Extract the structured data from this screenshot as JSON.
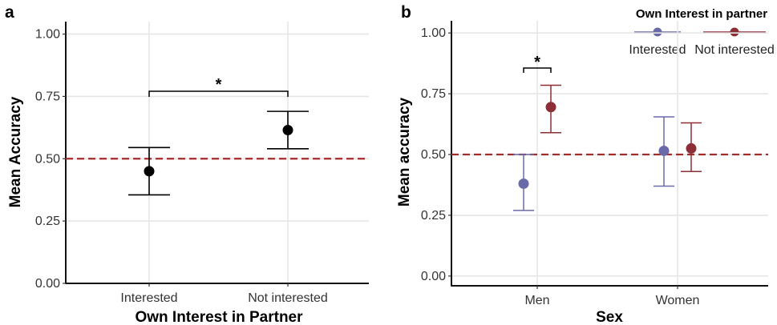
{
  "chart_data": [
    {
      "type": "scatter",
      "panel_label": "a",
      "xlabel": "Own Interest in Partner",
      "ylabel": "Mean Accuracy",
      "categories": [
        "Interested",
        "Not interested"
      ],
      "y_ticks": [
        "0.00",
        "0.25",
        "0.50",
        "0.75",
        "1.00"
      ],
      "ylim": [
        0,
        1.05
      ],
      "grid": true,
      "reference_line": {
        "y": 0.5,
        "style": "dashed",
        "color": "#a52a2a"
      },
      "series": [
        {
          "color": "#000000",
          "points": [
            {
              "x": "Interested",
              "y": 0.45,
              "ymin": 0.355,
              "ymax": 0.545
            },
            {
              "x": "Not interested",
              "y": 0.615,
              "ymin": 0.54,
              "ymax": 0.69
            }
          ]
        }
      ],
      "significance": {
        "from": "Interested",
        "to": "Not interested",
        "label": "*"
      }
    },
    {
      "type": "scatter",
      "panel_label": "b",
      "xlabel": "Sex",
      "ylabel": "Mean accuracy",
      "categories": [
        "Men",
        "Women"
      ],
      "y_ticks": [
        "0.00",
        "0.25",
        "0.50",
        "0.75",
        "1.00"
      ],
      "ylim": [
        -0.04,
        1.05
      ],
      "grid": true,
      "legend": {
        "title": "Own Interest in partner",
        "placement": "top-right"
      },
      "reference_line": {
        "y": 0.5,
        "style": "dashed",
        "color": "#a52a2a"
      },
      "series": [
        {
          "name": "Interested",
          "color": "#6a6aa8",
          "points": [
            {
              "x": "Men",
              "y": 0.38,
              "ymin": 0.27,
              "ymax": 0.5
            },
            {
              "x": "Women",
              "y": 0.515,
              "ymin": 0.37,
              "ymax": 0.655
            }
          ]
        },
        {
          "name": "Not interested",
          "color": "#8b2e35",
          "points": [
            {
              "x": "Men",
              "y": 0.695,
              "ymin": 0.59,
              "ymax": 0.785
            },
            {
              "x": "Women",
              "y": 0.525,
              "ymin": 0.43,
              "ymax": 0.63
            }
          ]
        }
      ],
      "significance": {
        "category": "Men",
        "label": "*"
      }
    }
  ]
}
